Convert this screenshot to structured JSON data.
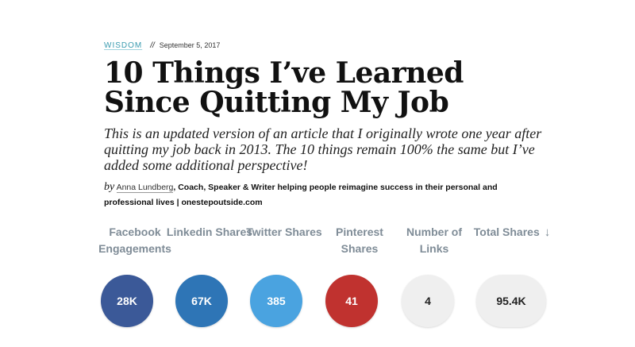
{
  "article": {
    "category": "WISDOM",
    "separator": "//",
    "date": "September 5, 2017",
    "title": "10 Things I’ve Learned Since Quitting My Job",
    "subtitle": "This is an updated version of an article that I originally wrote one year after quitting my job back in 2013. The 10 things remain 100% the same but I’ve added some additional perspective!",
    "byline": {
      "by": "by",
      "author": "Anna Lundberg",
      "bio": ", Coach, Speaker & Writer helping people reimagine success in their personal and professional lives | onestepoutside.com"
    }
  },
  "stats": [
    {
      "label": "Facebook Engagements",
      "value": "28K",
      "color": "#3b5998",
      "text_color": "#ffffff"
    },
    {
      "label": "Linkedin Shares",
      "value": "67K",
      "color": "#2e75b6",
      "text_color": "#ffffff"
    },
    {
      "label": "Twitter Shares",
      "value": "385",
      "color": "#4aa3e0",
      "text_color": "#ffffff"
    },
    {
      "label": "Pinterest Shares",
      "value": "41",
      "color": "#c0322f",
      "text_color": "#ffffff"
    },
    {
      "label": "Number of Links",
      "value": "4",
      "color": "#efefef",
      "text_color": "#222222"
    },
    {
      "label": "Total Shares",
      "value": "95.4K",
      "color": "#efefef",
      "text_color": "#222222",
      "sort_icon": "↓"
    }
  ]
}
